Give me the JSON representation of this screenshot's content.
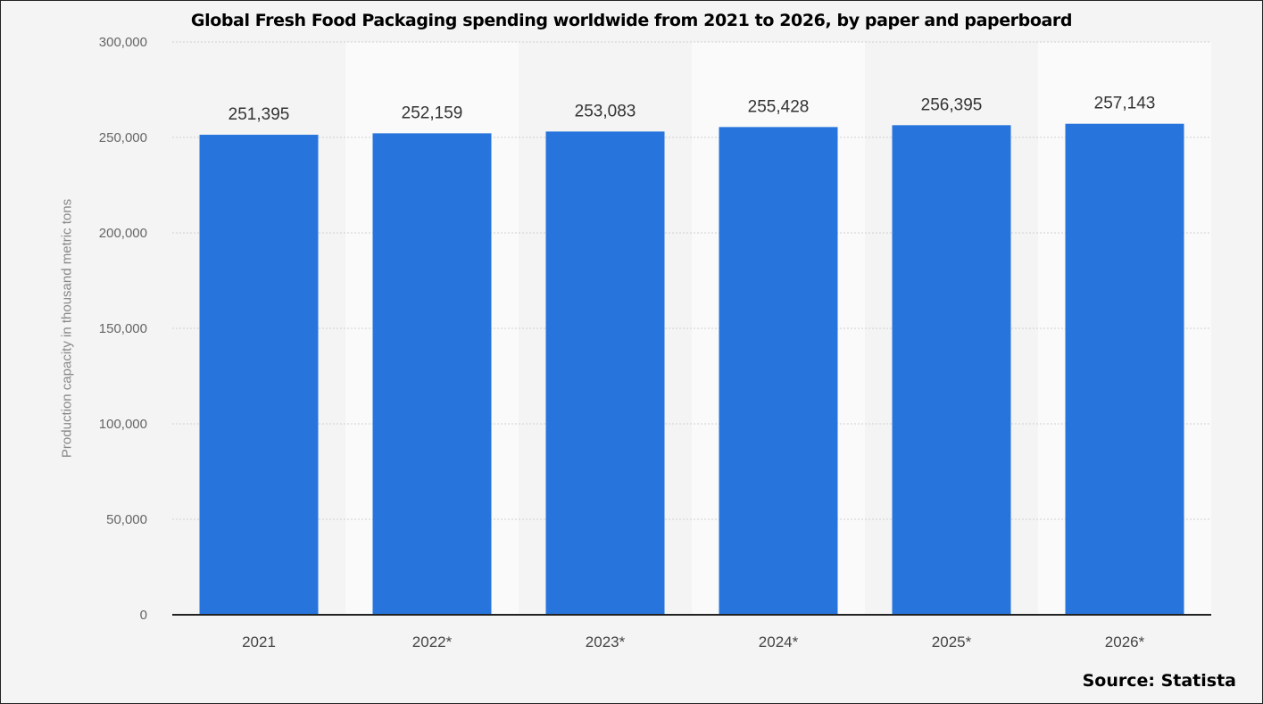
{
  "title": "Global Fresh Food Packaging spending worldwide from 2021 to 2026, by paper and paperboard",
  "source": "Source: Statista",
  "colors": {
    "bar": "#2775dc",
    "band": "#fafafa",
    "grid": "#d0d0d0",
    "axis": "#222222"
  },
  "chart_data": {
    "type": "bar",
    "title": "Global Fresh Food Packaging spending worldwide from 2021 to 2026, by paper and paperboard",
    "xlabel": "",
    "ylabel": "Production capacity in thousand metric tons",
    "categories": [
      "2021",
      "2022*",
      "2023*",
      "2024*",
      "2025*",
      "2026*"
    ],
    "values": [
      251395,
      252159,
      253083,
      255428,
      256395,
      257143
    ],
    "value_labels": [
      "251,395",
      "252,159",
      "253,083",
      "255,428",
      "256,395",
      "257,143"
    ],
    "ylim": [
      0,
      300000
    ],
    "yticks": [
      0,
      50000,
      100000,
      150000,
      200000,
      250000,
      300000
    ],
    "ytick_labels": [
      "0",
      "50,000",
      "100,000",
      "150,000",
      "200,000",
      "250,000",
      "300,000"
    ],
    "grid": true,
    "legend": "none"
  }
}
